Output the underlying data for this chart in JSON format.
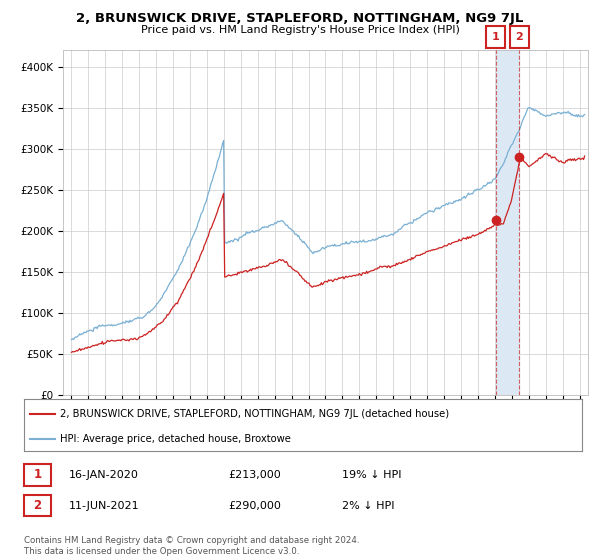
{
  "title1": "2, BRUNSWICK DRIVE, STAPLEFORD, NOTTINGHAM, NG9 7JL",
  "title2": "Price paid vs. HM Land Registry's House Price Index (HPI)",
  "ylabel_ticks": [
    "£0",
    "£50K",
    "£100K",
    "£150K",
    "£200K",
    "£250K",
    "£300K",
    "£350K",
    "£400K"
  ],
  "ytick_values": [
    0,
    50000,
    100000,
    150000,
    200000,
    250000,
    300000,
    350000,
    400000
  ],
  "ylim": [
    0,
    420000
  ],
  "xlim_start": 1994.5,
  "xlim_end": 2025.5,
  "hpi_color": "#7ab0d4",
  "price_color": "#cc2222",
  "sale1_year": 2020.04,
  "sale1_price": 213000,
  "sale2_year": 2021.44,
  "sale2_price": 290000,
  "legend_line1": "2, BRUNSWICK DRIVE, STAPLEFORD, NOTTINGHAM, NG9 7JL (detached house)",
  "legend_line2": "HPI: Average price, detached house, Broxtowe",
  "table_rows": [
    {
      "num": "1",
      "date": "16-JAN-2020",
      "price": "£213,000",
      "change": "19% ↓ HPI"
    },
    {
      "num": "2",
      "date": "11-JUN-2021",
      "price": "£290,000",
      "change": "2% ↓ HPI"
    }
  ],
  "footer": "Contains HM Land Registry data © Crown copyright and database right 2024.\nThis data is licensed under the Open Government Licence v3.0.",
  "background_color": "#ffffff",
  "grid_color": "#cccccc",
  "shade_color": "#dce9f5"
}
